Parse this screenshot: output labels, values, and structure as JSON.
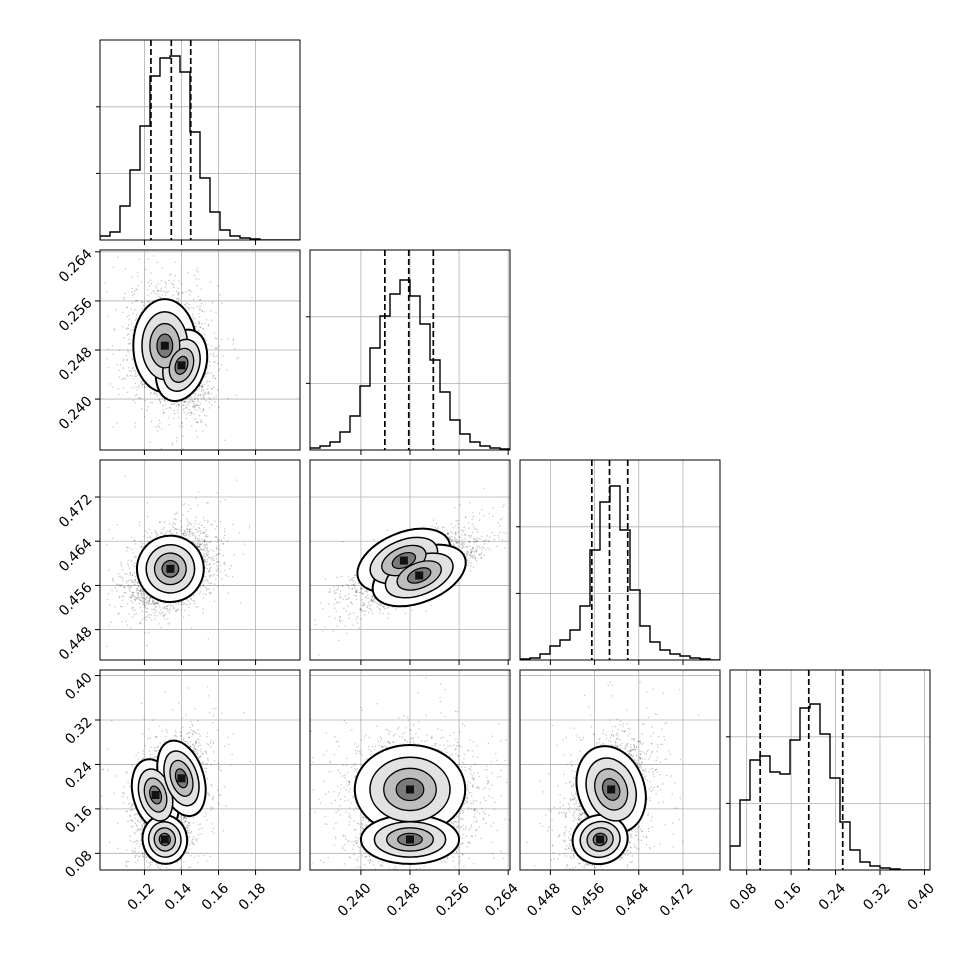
{
  "chart_data": {
    "type": "corner",
    "parameters": 4,
    "ranges": [
      [
        0.096,
        0.204
      ],
      [
        0.2317,
        0.2643
      ],
      [
        0.4425,
        0.4787
      ],
      [
        0.05,
        0.41
      ]
    ],
    "ticks": [
      [
        "0.12",
        "0.14",
        "0.16",
        "0.18"
      ],
      [
        "0.240",
        "0.248",
        "0.256",
        "0.264"
      ],
      [
        "0.448",
        "0.456",
        "0.464",
        "0.472"
      ],
      [
        "0.08",
        "0.16",
        "0.24",
        "0.32",
        "0.40"
      ]
    ],
    "quantiles": [
      [
        0.1235,
        0.1345,
        0.145
      ],
      [
        0.2439,
        0.2478,
        0.2518
      ],
      [
        0.4555,
        0.4587,
        0.462
      ],
      [
        0.1043,
        0.1918,
        0.2529
      ]
    ],
    "histograms": [
      {
        "bin_start": 0.096,
        "bin_width": 0.0054,
        "counts": [
          0.02,
          0.04,
          0.17,
          0.35,
          0.57,
          0.82,
          0.91,
          0.92,
          0.84,
          0.54,
          0.31,
          0.14,
          0.05,
          0.02,
          0.01,
          0.005,
          0,
          0,
          0,
          0
        ]
      },
      {
        "bin_start": 0.2317,
        "bin_width": 0.00163,
        "counts": [
          0.01,
          0.02,
          0.04,
          0.09,
          0.17,
          0.32,
          0.51,
          0.67,
          0.78,
          0.85,
          0.77,
          0.63,
          0.45,
          0.29,
          0.15,
          0.08,
          0.04,
          0.02,
          0.01,
          0.005
        ]
      },
      {
        "bin_start": 0.4425,
        "bin_width": 0.00181,
        "counts": [
          0.005,
          0.01,
          0.03,
          0.07,
          0.1,
          0.15,
          0.27,
          0.55,
          0.79,
          0.87,
          0.65,
          0.35,
          0.17,
          0.09,
          0.05,
          0.03,
          0.02,
          0.01,
          0.005,
          0
        ]
      },
      {
        "bin_start": 0.05,
        "bin_width": 0.018,
        "counts": [
          0.12,
          0.35,
          0.55,
          0.57,
          0.49,
          0.48,
          0.65,
          0.81,
          0.83,
          0.68,
          0.46,
          0.24,
          0.1,
          0.04,
          0.02,
          0.01,
          0.005,
          0,
          0,
          0
        ]
      }
    ],
    "scatter_panels": [
      {
        "x_param": 0,
        "y_param": 1,
        "modes": [
          {
            "mx": 0.131,
            "my": 0.2487,
            "sx": 0.0085,
            "sy": 0.0038,
            "rho": 0.0,
            "w": 0.62
          },
          {
            "mx": 0.14,
            "my": 0.2455,
            "sx": 0.0065,
            "sy": 0.003,
            "rho": -0.25,
            "w": 0.38
          }
        ]
      },
      {
        "x_param": 0,
        "y_param": 2,
        "modes": [
          {
            "mx": 0.134,
            "my": 0.459,
            "sx": 0.009,
            "sy": 0.003,
            "rho": 0.35,
            "w": 1.0
          }
        ]
      },
      {
        "x_param": 1,
        "y_param": 2,
        "modes": [
          {
            "mx": 0.247,
            "my": 0.4605,
            "sx": 0.004,
            "sy": 0.0025,
            "rho": 0.85,
            "w": 0.45
          },
          {
            "mx": 0.2495,
            "my": 0.4578,
            "sx": 0.004,
            "sy": 0.0024,
            "rho": 0.85,
            "w": 0.55
          }
        ]
      },
      {
        "x_param": 0,
        "y_param": 3,
        "modes": [
          {
            "mx": 0.126,
            "my": 0.185,
            "sx": 0.006,
            "sy": 0.033,
            "rho": 0.2,
            "w": 0.34
          },
          {
            "mx": 0.14,
            "my": 0.215,
            "sx": 0.006,
            "sy": 0.035,
            "rho": 0.2,
            "w": 0.36
          },
          {
            "mx": 0.131,
            "my": 0.105,
            "sx": 0.006,
            "sy": 0.022,
            "rho": 0.2,
            "w": 0.3
          }
        ]
      },
      {
        "x_param": 1,
        "y_param": 3,
        "modes": [
          {
            "mx": 0.248,
            "my": 0.195,
            "sx": 0.0045,
            "sy": 0.04,
            "rho": 0.0,
            "w": 0.72
          },
          {
            "mx": 0.248,
            "my": 0.105,
            "sx": 0.004,
            "sy": 0.022,
            "rho": 0.0,
            "w": 0.28
          }
        ]
      },
      {
        "x_param": 2,
        "y_param": 3,
        "modes": [
          {
            "mx": 0.459,
            "my": 0.195,
            "sx": 0.003,
            "sy": 0.04,
            "rho": 0.3,
            "w": 0.72
          },
          {
            "mx": 0.457,
            "my": 0.105,
            "sx": 0.0025,
            "sy": 0.022,
            "rho": 0.3,
            "w": 0.28
          }
        ]
      }
    ],
    "grid": true
  }
}
